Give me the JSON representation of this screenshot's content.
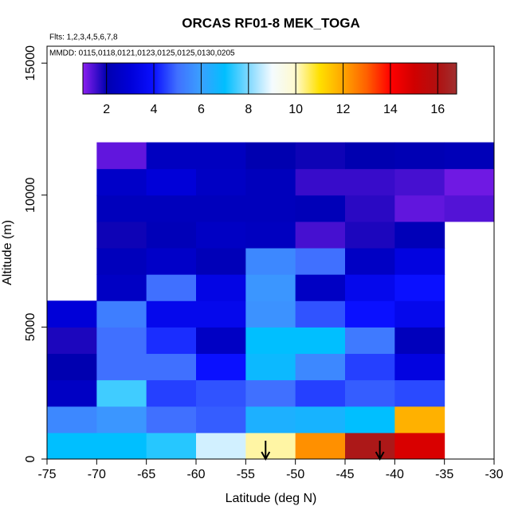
{
  "chart_data": {
    "type": "heatmap",
    "title": "ORCAS RF01-8 MEK_TOGA",
    "subtitle": "Flts: 1,2,3,4,5,6,7,8",
    "annotation": "MMDD: 0115,0118,0121,0123,0125,0125,0130,0205",
    "x_label": "Latitude (deg N)",
    "y_label": "Altitude (m)",
    "xlim": [
      -75,
      -30
    ],
    "ylim": [
      0,
      15640
    ],
    "xticks": [
      -75,
      -70,
      -65,
      -60,
      -55,
      -50,
      -45,
      -40,
      -35,
      -30
    ],
    "yticks": [
      0,
      5000,
      10000,
      15000
    ],
    "x": [
      -75,
      -70,
      -65,
      -60,
      -55,
      -50,
      -45,
      -40,
      -35,
      -30
    ],
    "y": [
      0,
      1000,
      2000,
      3000,
      4000,
      5000,
      6000,
      7000,
      8000,
      9000,
      10000,
      11000,
      12000
    ],
    "z": [
      [
        7,
        7,
        7.3,
        8.7,
        10.2,
        12.3,
        16.2,
        14.8,
        null
      ],
      [
        5.5,
        5.8,
        5,
        4.8,
        6.5,
        6.6,
        7,
        11.8,
        null
      ],
      [
        2.5,
        7.5,
        4.5,
        4.7,
        5,
        4.5,
        4.8,
        4.6,
        null
      ],
      [
        2,
        5,
        5,
        4,
        6.8,
        5.5,
        4.5,
        3.2,
        null
      ],
      [
        1.8,
        5,
        4.3,
        2.5,
        7,
        7,
        5.2,
        2.3,
        null
      ],
      [
        3,
        5.3,
        3.5,
        3.5,
        5.7,
        4.7,
        4,
        3.5,
        null
      ],
      [
        null,
        2.5,
        5,
        3.3,
        5.8,
        2.5,
        3.5,
        4,
        null
      ],
      [
        null,
        2.3,
        2.6,
        2.2,
        5.5,
        5,
        2.5,
        3.2,
        null
      ],
      [
        null,
        1.9,
        2.2,
        2.5,
        2.4,
        1.5,
        1.8,
        2.2,
        null
      ],
      [
        null,
        2.3,
        2.3,
        2.3,
        2.3,
        2.2,
        1.7,
        1.3,
        1.4
      ],
      [
        null,
        2.6,
        3,
        2.5,
        2.3,
        1.6,
        1.6,
        1.5,
        1.2
      ],
      [
        null,
        1.3,
        2.4,
        2.4,
        2,
        1.9,
        2,
        2.1,
        2.2
      ]
    ],
    "clim": [
      1,
      16.8
    ],
    "cticks": [
      2,
      4,
      6,
      8,
      10,
      12,
      14,
      16
    ],
    "colorscale": [
      {
        "value": 1,
        "color": "#8b1ff0"
      },
      {
        "value": 2,
        "color": "#0000b0"
      },
      {
        "value": 3,
        "color": "#0000d8"
      },
      {
        "value": 4,
        "color": "#0a10ff"
      },
      {
        "value": 5,
        "color": "#4070ff"
      },
      {
        "value": 6,
        "color": "#3aa0ff"
      },
      {
        "value": 7,
        "color": "#00bfff"
      },
      {
        "value": 8,
        "color": "#80d8ff"
      },
      {
        "value": 9,
        "color": "#f4fbff"
      },
      {
        "value": 10,
        "color": "#fffacd"
      },
      {
        "value": 11,
        "color": "#ffe000"
      },
      {
        "value": 12,
        "color": "#ffa500"
      },
      {
        "value": 13,
        "color": "#ff6000"
      },
      {
        "value": 14,
        "color": "#ff0000"
      },
      {
        "value": 15,
        "color": "#d00000"
      },
      {
        "value": 16,
        "color": "#b01010"
      },
      {
        "value": 16.8,
        "color": "#a03030"
      }
    ],
    "markers_x": [
      -53,
      -41.5
    ]
  }
}
